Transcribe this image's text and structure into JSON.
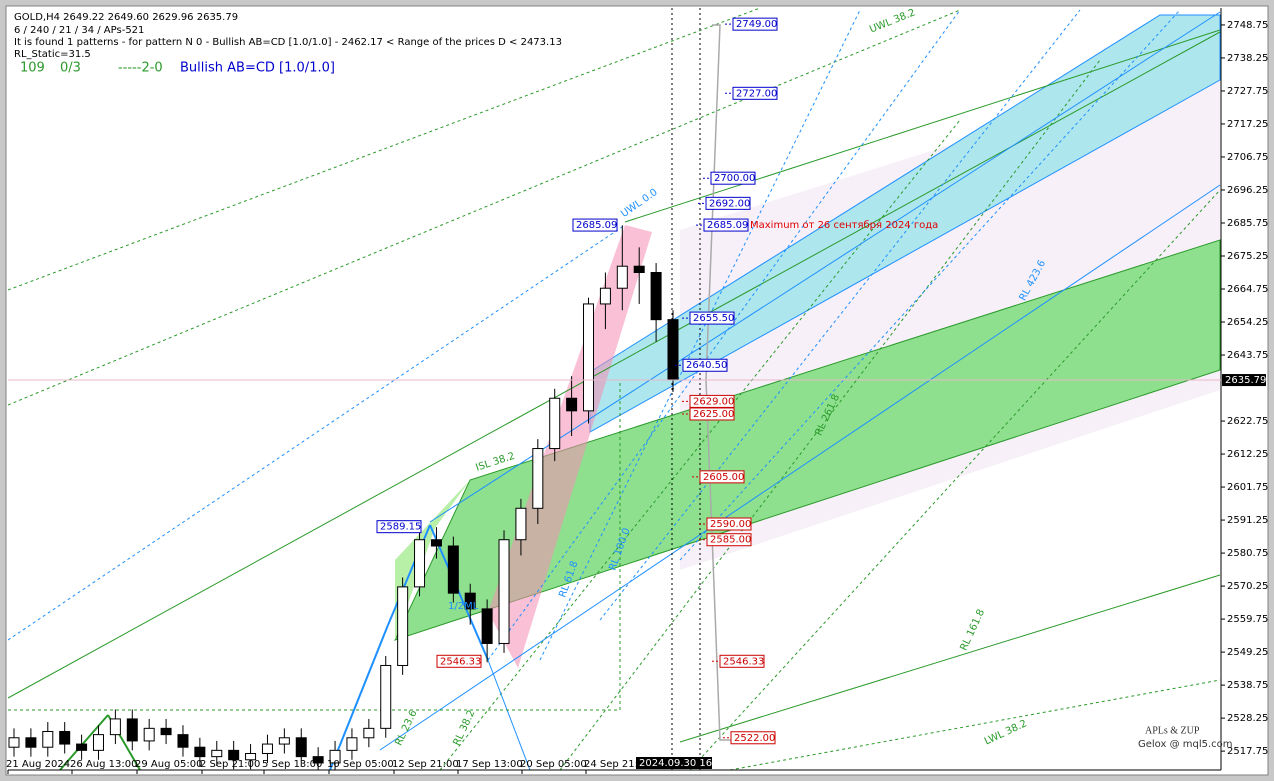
{
  "chart_data": {
    "type": "candlestick",
    "header": {
      "symbol_line": "GOLD,H4  2649.22 2649.60 2629.96 2635.79",
      "lines": [
        "6 / 240 / 21 / 34 / APs-521",
        "It is found 1 patterns  -  for pattern N 0 - Bullish AB=CD [1.0/1.0] - 2462.17 < Range of the prices D < 2473.13",
        "RL_Static=31.5"
      ],
      "status": [
        "109",
        "0/3",
        "-----2-0",
        "Bullish AB=CD [1.0/1.0]"
      ]
    },
    "ylim": [
      2511.75,
      2753.5
    ],
    "yticks": [
      2748.75,
      2738.25,
      2727.75,
      2717.25,
      2706.75,
      2696.25,
      2685.75,
      2675.25,
      2664.75,
      2654.25,
      2643.75,
      2622.75,
      2612.25,
      2601.75,
      2591.25,
      2580.75,
      2570.25,
      2559.75,
      2549.25,
      2538.75,
      2528.25,
      2517.75
    ],
    "x_labels": [
      "21 Aug 2024",
      "26 Aug 13:00",
      "29 Aug 05:00",
      "2 Sep 21:00",
      "5 Sep 13:00",
      "10 Sep 05:00",
      "12 Sep 21:00",
      "17 Sep 13:00",
      "20 Sep 05:00",
      "24 Sep 21:00"
    ],
    "cursor_time": "2024.09.30 16:55",
    "current_price": 2635.79,
    "candles": {
      "color_up": "#ffffff",
      "color_down": "#000000",
      "open": [
        2519,
        2522,
        2519,
        2524,
        2520,
        2518,
        2523,
        2528,
        2521,
        2525,
        2523,
        2519,
        2516,
        2518,
        2515,
        2517,
        2520,
        2522,
        2516,
        2514,
        2518,
        2522,
        2525,
        2545,
        2570,
        2585,
        2583,
        2568,
        2563,
        2552,
        2585,
        2595,
        2614,
        2630,
        2626,
        2660,
        2665,
        2672,
        2670,
        2655
      ],
      "high": [
        2525,
        2525,
        2527,
        2527,
        2523,
        2526,
        2531,
        2531,
        2528,
        2528,
        2526,
        2522,
        2521,
        2521,
        2520,
        2523,
        2525,
        2525,
        2519,
        2521,
        2525,
        2528,
        2548,
        2573,
        2589,
        2589,
        2586,
        2571,
        2566,
        2588,
        2598,
        2617,
        2633,
        2637,
        2662,
        2670,
        2685,
        2678,
        2673,
        2658
      ],
      "low": [
        2516,
        2516,
        2516,
        2517,
        2515,
        2515,
        2520,
        2518,
        2518,
        2520,
        2516,
        2513,
        2513,
        2512,
        2512,
        2514,
        2517,
        2513,
        2511,
        2511,
        2515,
        2519,
        2522,
        2542,
        2567,
        2579,
        2565,
        2558,
        2546,
        2549,
        2580,
        2590,
        2610,
        2618,
        2622,
        2652,
        2658,
        2660,
        2648,
        2632
      ],
      "close": [
        2522,
        2519,
        2524,
        2520,
        2518,
        2523,
        2528,
        2521,
        2525,
        2523,
        2519,
        2516,
        2518,
        2515,
        2517,
        2520,
        2522,
        2516,
        2514,
        2518,
        2522,
        2525,
        2545,
        2570,
        2585,
        2583,
        2568,
        2563,
        2552,
        2585,
        2595,
        2614,
        2630,
        2626,
        2660,
        2665,
        2672,
        2670,
        2655,
        2636
      ]
    },
    "levels_upper": {
      "color": "#0000cc",
      "items": [
        {
          "value": 2749,
          "label": "2749.00"
        },
        {
          "value": 2727,
          "label": "2727.00"
        },
        {
          "value": 2700,
          "label": "2700.00"
        },
        {
          "value": 2692,
          "label": "2692.00"
        },
        {
          "value": 2685.09,
          "label": "2685.09"
        },
        {
          "value": 2655.5,
          "label": "2655.50"
        },
        {
          "value": 2640.5,
          "label": "2640.50"
        }
      ]
    },
    "levels_lower": {
      "color": "#cc0000",
      "items": [
        {
          "value": 2629,
          "label": "2629.00"
        },
        {
          "value": 2625,
          "label": "2625.00"
        },
        {
          "value": 2605,
          "label": "2605.00"
        },
        {
          "value": 2590,
          "label": "2590.00"
        },
        {
          "value": 2585,
          "label": "2585.00"
        },
        {
          "value": 2546.33,
          "label": "2546.33"
        },
        {
          "value": 2522,
          "label": "2522.00"
        }
      ]
    },
    "pivots": [
      {
        "value": 2685.09,
        "color": "#0000cc"
      },
      {
        "value": 2589.15,
        "color": "#0000cc"
      },
      {
        "value": 2546.33,
        "color": "#cc0000"
      }
    ],
    "note": "Maximum от 26 сентября 2024 года",
    "line_labels": [
      "UWL 38.2",
      "UWL 0.0",
      "ISL 38.2",
      "RL 423.6",
      "RL 261.8",
      "RL 161.8",
      "RL 100.0",
      "LWL 38.2",
      "1/2ML",
      "RL 61.8",
      "RL 38.2",
      "RL 23.6"
    ],
    "watermark": [
      "APLs & ZUP",
      "Gelox @ mql5.com"
    ]
  }
}
